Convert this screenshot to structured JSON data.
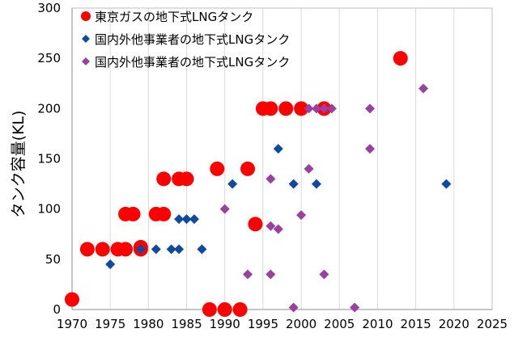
{
  "chart_data": {
    "type": "scatter",
    "title": "",
    "xlabel": "",
    "ylabel": "タンク容量(KL)",
    "xlim": [
      1970,
      2025
    ],
    "ylim": [
      0,
      300
    ],
    "xticks": [
      1970,
      1975,
      1980,
      1985,
      1990,
      1995,
      2000,
      2005,
      2010,
      2015,
      2020,
      2025
    ],
    "yticks": [
      0,
      50,
      100,
      150,
      200,
      250,
      300
    ],
    "grid": "vertical-only",
    "legend_position": "top-left",
    "series": [
      {
        "name": "東京ガスの地下式LNGタンク",
        "marker": "circle",
        "color": "#ff0000",
        "points": [
          [
            1970,
            10
          ],
          [
            1972,
            60
          ],
          [
            1974,
            60
          ],
          [
            1976,
            60
          ],
          [
            1977,
            60
          ],
          [
            1977,
            95
          ],
          [
            1978,
            95
          ],
          [
            1979,
            62
          ],
          [
            1979,
            60
          ],
          [
            1981,
            95
          ],
          [
            1982,
            95
          ],
          [
            1982,
            130
          ],
          [
            1984,
            130
          ],
          [
            1985,
            130
          ],
          [
            1988,
            0
          ],
          [
            1989,
            140
          ],
          [
            1990,
            0
          ],
          [
            1992,
            0
          ],
          [
            1993,
            140
          ],
          [
            1994,
            85
          ],
          [
            1995,
            200
          ],
          [
            1996,
            200
          ],
          [
            1998,
            200
          ],
          [
            2000,
            200
          ],
          [
            2003,
            200
          ],
          [
            2013,
            250
          ]
        ]
      },
      {
        "name": "国内外他事業者の地下式LNGタンク",
        "marker": "diamond",
        "color": "#0d4aa0",
        "points": [
          [
            1975,
            45
          ],
          [
            1979,
            60
          ],
          [
            1981,
            60
          ],
          [
            1983,
            60
          ],
          [
            1984,
            60
          ],
          [
            1984,
            90
          ],
          [
            1985,
            90
          ],
          [
            1986,
            90
          ],
          [
            1987,
            60
          ],
          [
            1991,
            125
          ],
          [
            1997,
            160
          ],
          [
            1999,
            125
          ],
          [
            2002,
            125
          ],
          [
            2019,
            125
          ]
        ]
      },
      {
        "name": "国内外他事業者の地下式LNGタンク",
        "marker": "diamond",
        "color": "#9b3fa2",
        "points": [
          [
            1990,
            100
          ],
          [
            1993,
            35
          ],
          [
            1996,
            130
          ],
          [
            1996,
            83
          ],
          [
            1997,
            80
          ],
          [
            1996,
            35
          ],
          [
            1999,
            2
          ],
          [
            2000,
            94
          ],
          [
            2001,
            140
          ],
          [
            2001,
            200
          ],
          [
            2002,
            200
          ],
          [
            2003,
            200
          ],
          [
            2004,
            200
          ],
          [
            2003,
            35
          ],
          [
            2007,
            2
          ],
          [
            2009,
            200
          ],
          [
            2009,
            160
          ],
          [
            2016,
            220
          ]
        ]
      }
    ]
  }
}
